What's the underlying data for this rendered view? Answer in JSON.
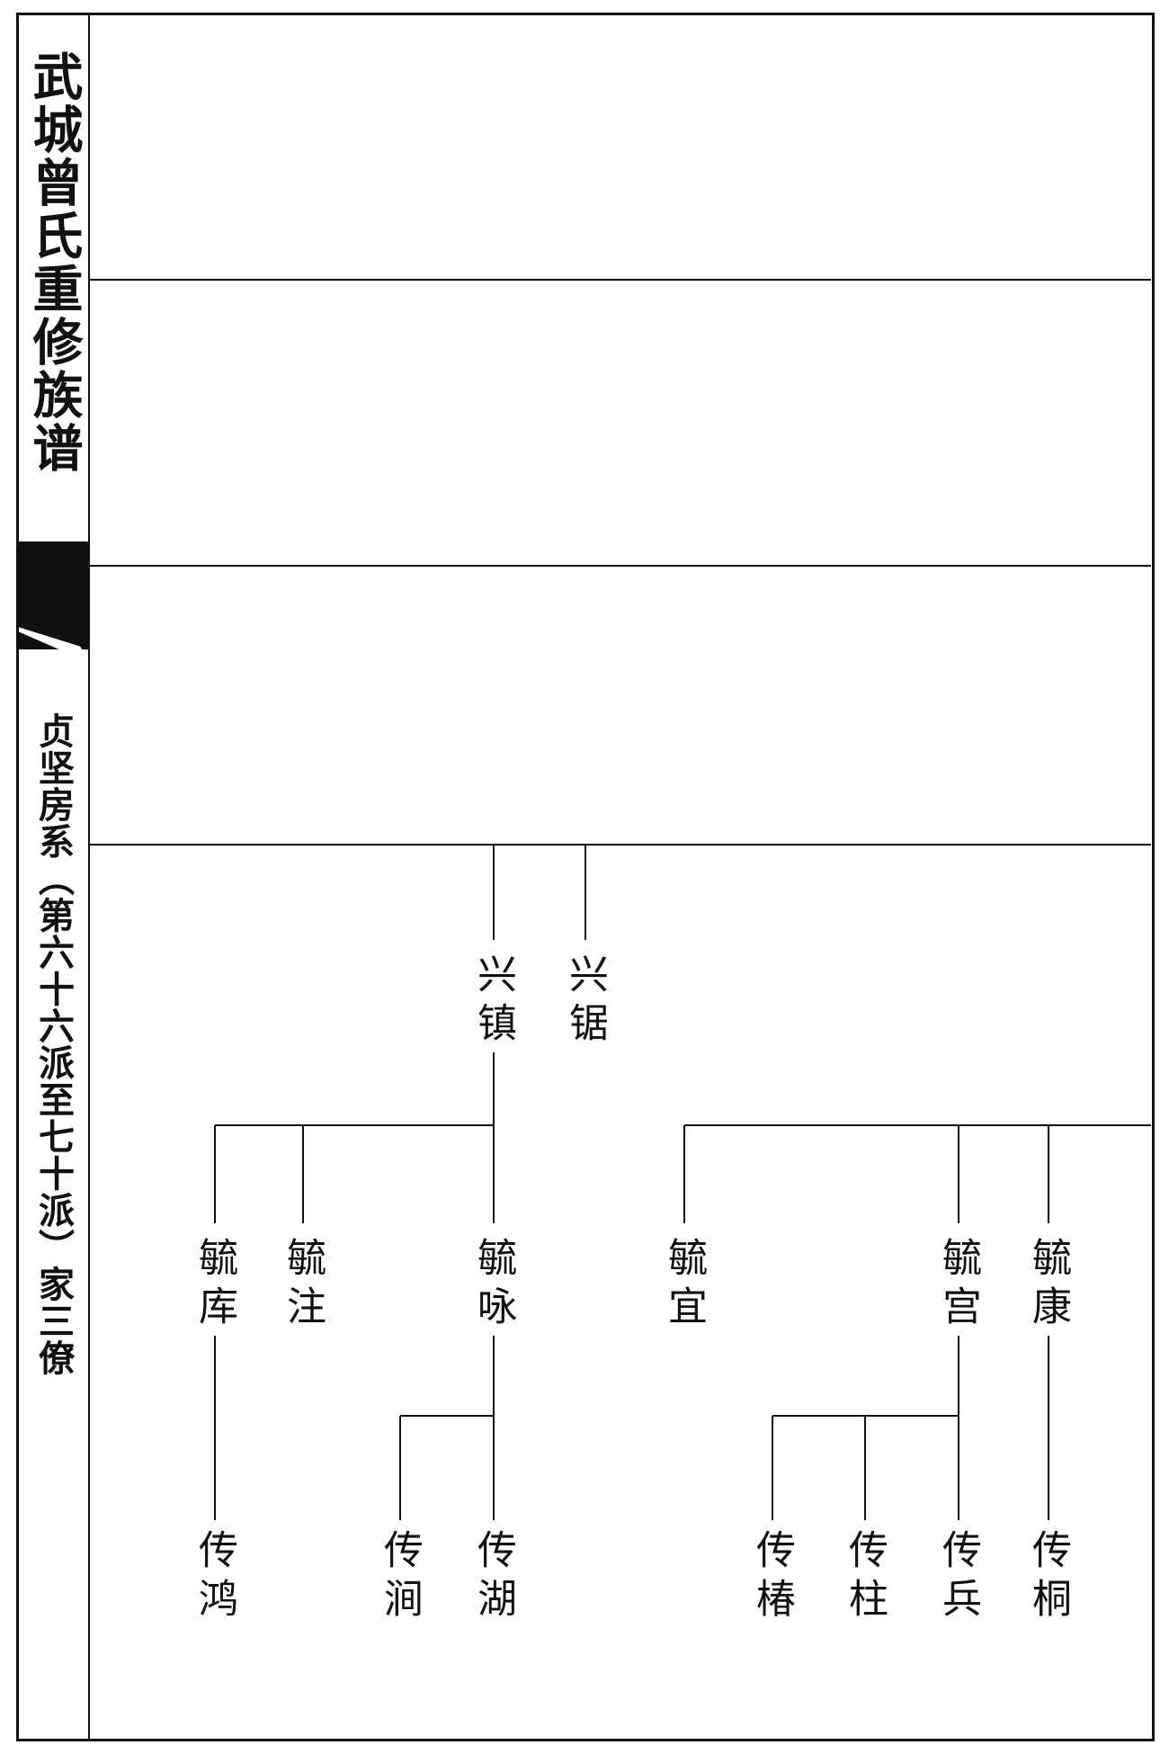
{
  "sidebar": {
    "title": "武城曾氏重修族谱",
    "subtitle": "贞坚房系︵第六十六派至七十派︶家三僚"
  },
  "tree": {
    "nodes": [
      {
        "id": "xingzhen",
        "name": "兴镇"
      },
      {
        "id": "xingju",
        "name": "兴锯"
      },
      {
        "id": "liuku",
        "name": "毓库"
      },
      {
        "id": "liuzhu",
        "name": "毓注"
      },
      {
        "id": "liuyong",
        "name": "毓咏"
      },
      {
        "id": "liuyi",
        "name": "毓宜"
      },
      {
        "id": "liugong",
        "name": "毓宫"
      },
      {
        "id": "liukang",
        "name": "毓康"
      },
      {
        "id": "chuanhong",
        "name": "传鸿"
      },
      {
        "id": "chuanjian",
        "name": "传涧"
      },
      {
        "id": "chuanhu",
        "name": "传湖"
      },
      {
        "id": "chuanchun",
        "name": "传椿"
      },
      {
        "id": "chuanzhu",
        "name": "传柱"
      },
      {
        "id": "chuanbing",
        "name": "传兵"
      },
      {
        "id": "chuantong",
        "name": "传桐"
      }
    ]
  }
}
